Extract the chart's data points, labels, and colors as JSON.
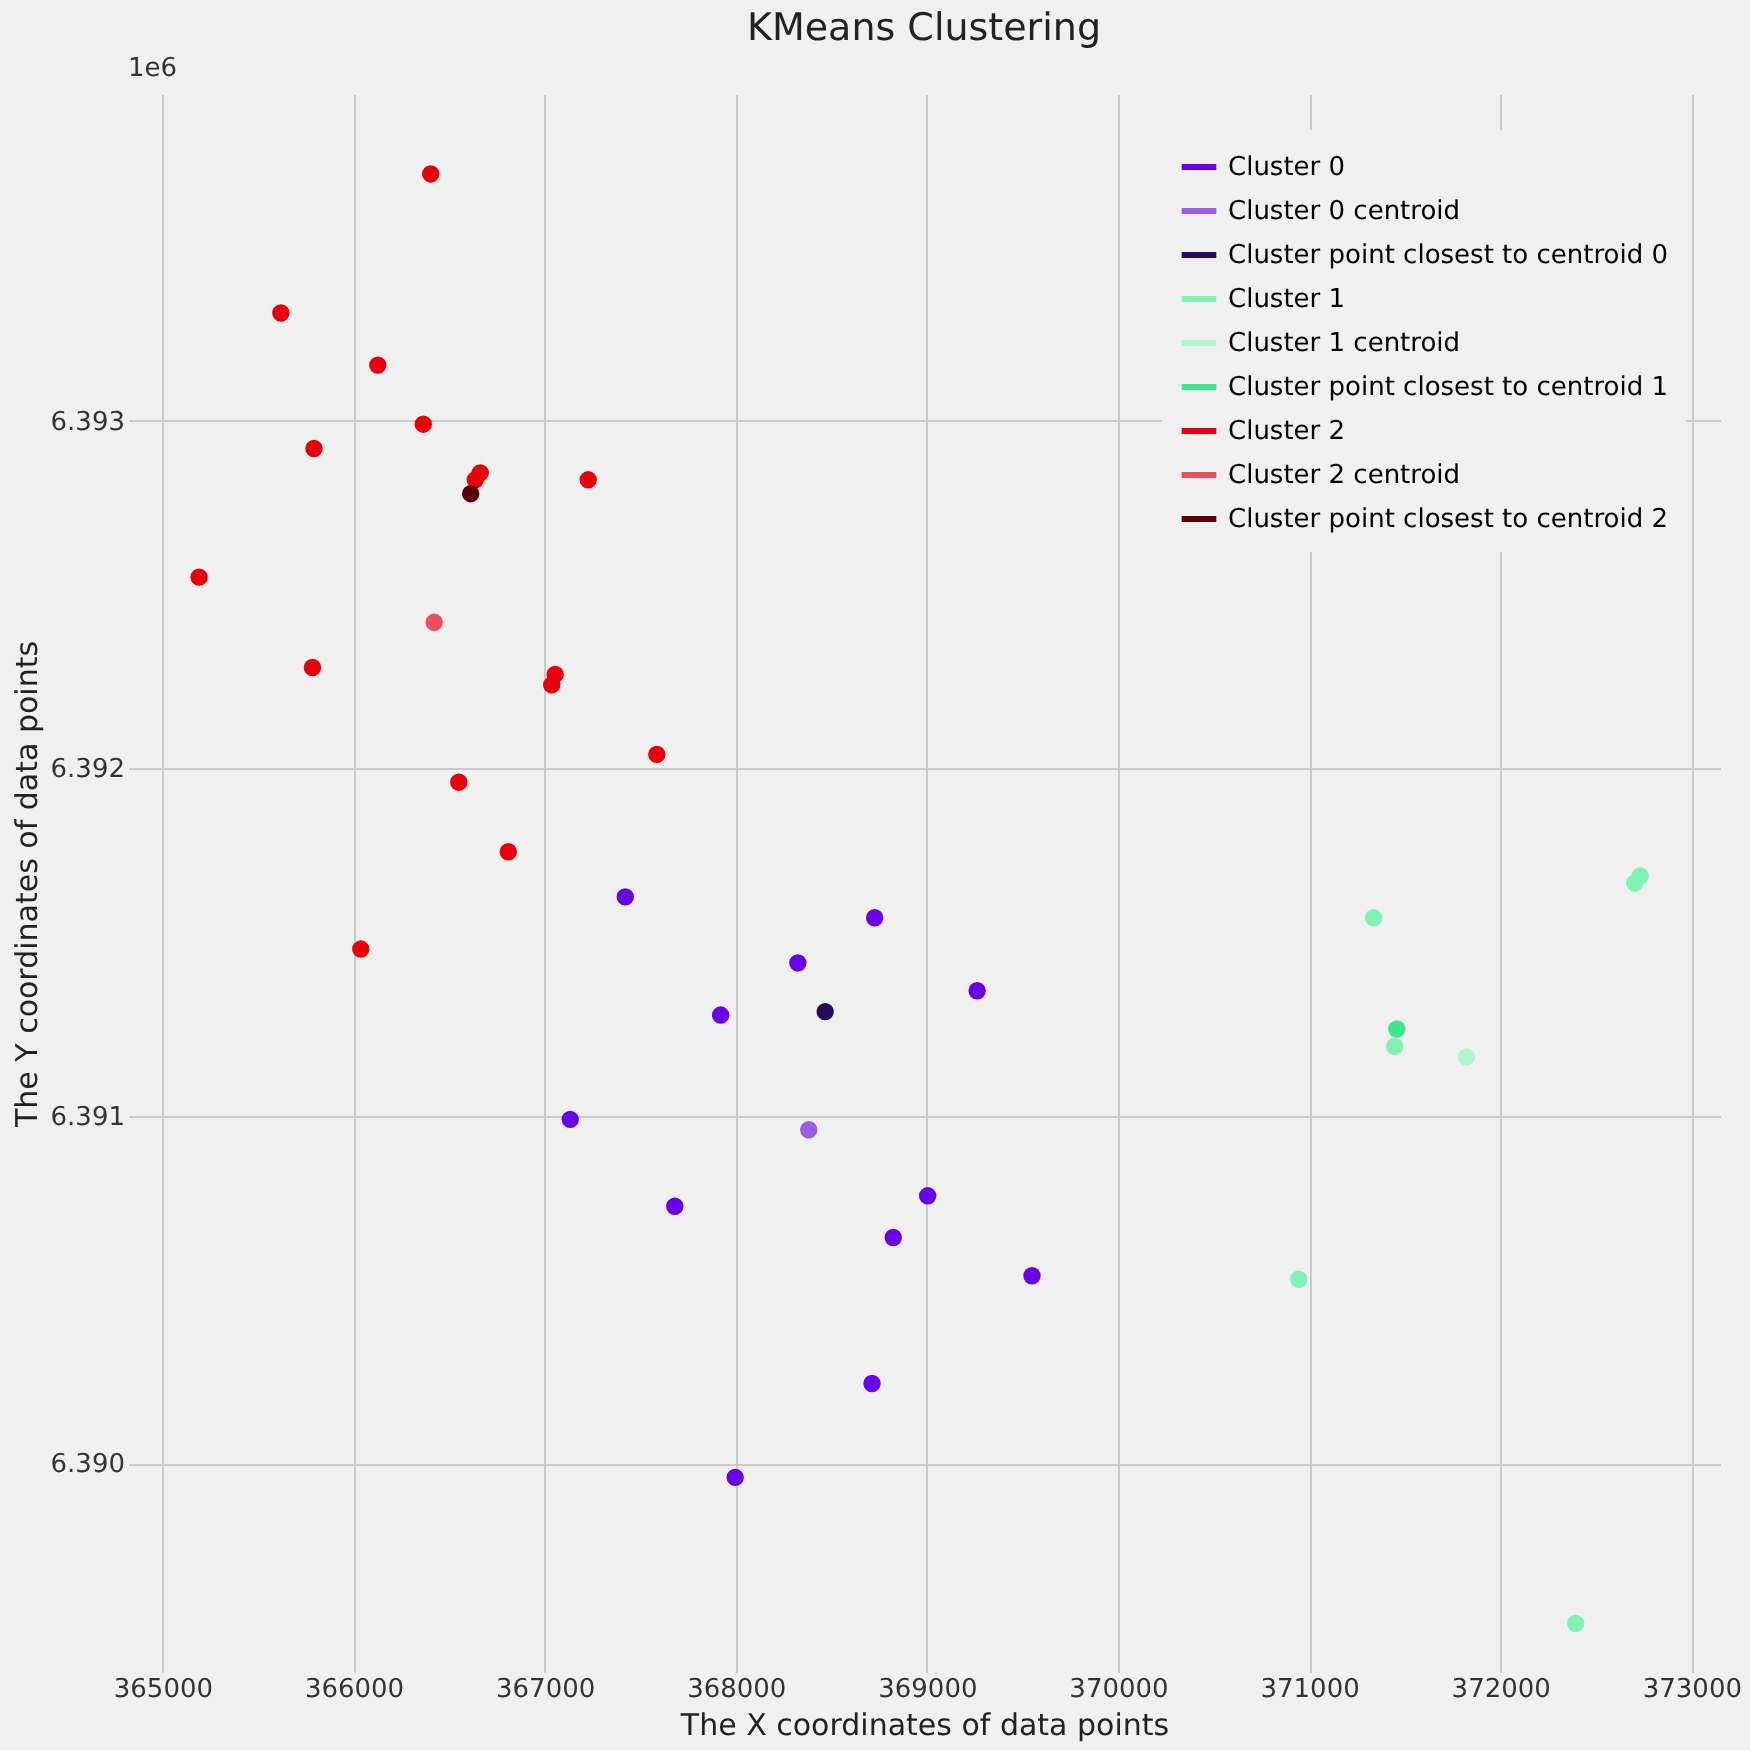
{
  "chart_data": {
    "type": "scatter",
    "title": "KMeans Clustering",
    "xlabel": "The X coordinates of data points",
    "ylabel": "The Y coordinates of data points",
    "annotations": [
      "1e6"
    ],
    "xlim": [
      364820,
      373150
    ],
    "xticks": [
      365000,
      366000,
      367000,
      368000,
      369000,
      370000,
      371000,
      372000,
      373000
    ],
    "ylim": [
      6.3894,
      6.39394
    ],
    "yticks": [
      {
        "value": 6.39,
        "label": "6.390"
      },
      6.391,
      6.392,
      6.393
    ],
    "grid": true,
    "legend": "top right",
    "marker": "circle",
    "series": [
      {
        "name": "Cluster 0",
        "color": "#6a00e8",
        "x": [
          367422,
          368325,
          368727,
          367921,
          367134,
          367681,
          368713,
          367997,
          369263,
          369004,
          368824,
          369550
        ],
        "values": [
          6.39163,
          6.39144,
          6.39157,
          6.39129,
          6.39099,
          6.39074,
          6.39023,
          6.38996,
          6.39136,
          6.39077,
          6.39065,
          6.39054
        ]
      },
      {
        "name": "Cluster 0 centroid",
        "color": "#9b5ce8",
        "x": [
          368382
        ],
        "values": [
          6.39096
        ]
      },
      {
        "name": "Cluster point closest to centroid 0",
        "color": "#2a0a5e",
        "x": [
          368468
        ],
        "values": [
          6.3913
        ]
      },
      {
        "name": "Cluster 1",
        "color": "#7ff2b4",
        "x": [
          371337,
          372732,
          372704,
          371448,
          370946,
          372395
        ],
        "values": [
          6.39157,
          6.39169,
          6.39167,
          6.3912,
          6.39053,
          6.38954
        ]
      },
      {
        "name": "Cluster 1 centroid",
        "color": "#aef5cc",
        "x": [
          371823
        ],
        "values": [
          6.39117
        ]
      },
      {
        "name": "Cluster point closest to centroid 1",
        "color": "#3ee68e",
        "x": [
          371459
        ],
        "values": [
          6.39125
        ]
      },
      {
        "name": "Cluster 2",
        "color": "#e8000b",
        "x": [
          366404,
          365620,
          366127,
          366365,
          365793,
          366663,
          366637,
          367228,
          365192,
          365785,
          367055,
          367037,
          367587,
          366551,
          366810,
          366038
        ],
        "values": [
          6.39371,
          6.39331,
          6.39316,
          6.39299,
          6.39292,
          6.39285,
          6.39283,
          6.39283,
          6.39255,
          6.39229,
          6.39227,
          6.39224,
          6.39204,
          6.39196,
          6.39176,
          6.39148
        ]
      },
      {
        "name": "Cluster 2 centroid",
        "color": "#e8505e",
        "x": [
          366422
        ],
        "values": [
          6.39242
        ]
      },
      {
        "name": "Cluster point closest to centroid 2",
        "color": "#5a0008",
        "x": [
          366613
        ],
        "values": [
          6.39279
        ]
      }
    ]
  }
}
